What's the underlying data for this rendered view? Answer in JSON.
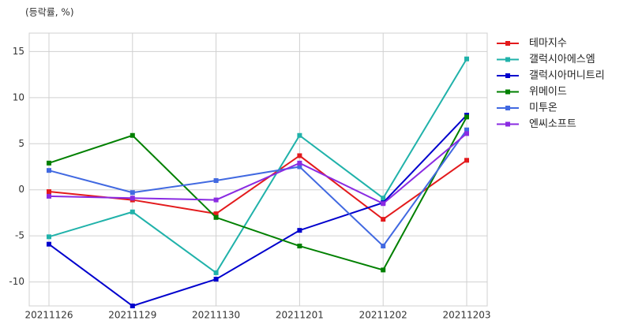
{
  "chart_data": {
    "type": "line",
    "annotation": "(등락률, %)",
    "categories": [
      "20211126",
      "20211129",
      "20211130",
      "20211201",
      "20211202",
      "20211203"
    ],
    "series": [
      {
        "name": "테마지수",
        "color": "#e31a1c",
        "values": [
          -0.2,
          -1.1,
          -2.6,
          3.7,
          -3.2,
          3.2
        ]
      },
      {
        "name": "갤럭시아에스엠",
        "color": "#20b2aa",
        "values": [
          -5.1,
          -2.4,
          -9.0,
          5.9,
          -0.9,
          14.2
        ]
      },
      {
        "name": "갤럭시아머니트리",
        "color": "#0000cd",
        "values": [
          -5.9,
          -12.6,
          -9.7,
          -4.4,
          -1.4,
          8.1
        ]
      },
      {
        "name": "위메이드",
        "color": "#008000",
        "values": [
          2.9,
          5.9,
          -3.0,
          -6.1,
          -8.7,
          7.9
        ]
      },
      {
        "name": "미투온",
        "color": "#4169e1",
        "values": [
          2.1,
          -0.3,
          1.0,
          2.5,
          -6.1,
          6.5
        ]
      },
      {
        "name": "엔씨소프트",
        "color": "#8a2be2",
        "values": [
          -0.7,
          -0.9,
          -1.1,
          2.9,
          -1.5,
          6.1
        ]
      }
    ],
    "ylim": [
      -12.6,
      17
    ],
    "yticks": [
      -10,
      -5,
      0,
      5,
      10,
      15
    ],
    "grid": true,
    "legend": "outside-right"
  }
}
